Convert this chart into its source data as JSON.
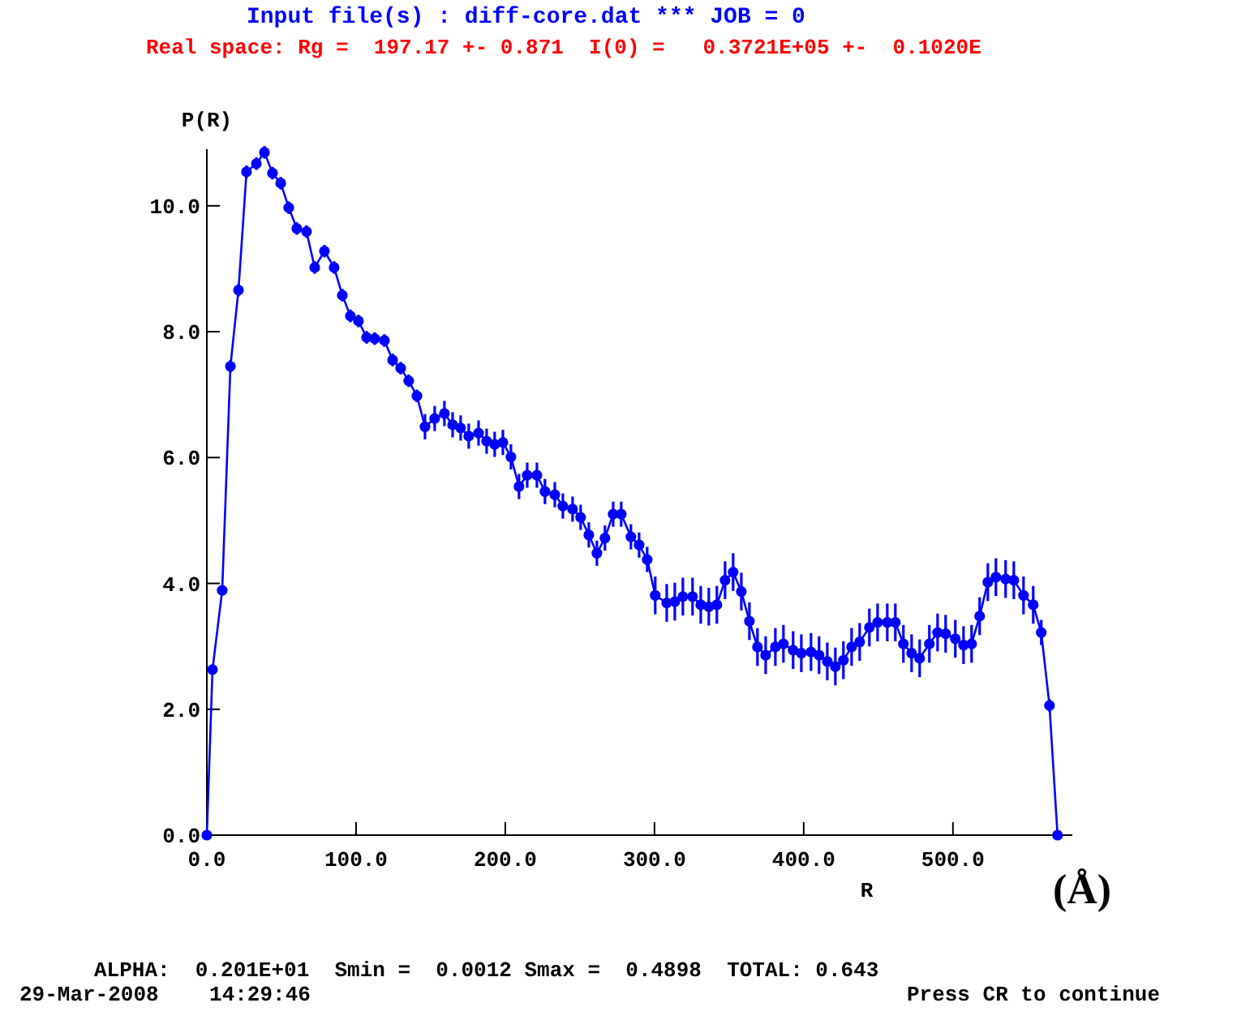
{
  "chart_data": {
    "type": "line",
    "title": "Input file(s) : diff-core.dat *** JOB = 0",
    "subtitle": "Real space: Rg =  197.17 +- 0.871  I(0) =   0.3721E+05 +-  0.1020E",
    "xlabel": "R",
    "ylabel": "P(R)",
    "annotations": [
      "(Å)",
      "ALPHA:  0.201E+01  Smin =  0.0012 Smax =  0.4898  TOTAL: 0.643",
      "29-Mar-2008    14:29:46",
      "Press CR to continue"
    ],
    "xlim": [
      0,
      580
    ],
    "ylim": [
      0,
      10.9
    ],
    "xticks": [
      {
        "value": 0,
        "label": "0.0"
      },
      {
        "value": 100,
        "label": "100.0"
      },
      {
        "value": 200,
        "label": "200.0"
      },
      {
        "value": 300,
        "label": "300.0"
      },
      {
        "value": 400,
        "label": "400.0"
      },
      {
        "value": 500,
        "label": "500.0"
      }
    ],
    "yticks": [
      {
        "value": 0,
        "label": "0.0"
      },
      {
        "value": 2,
        "label": "2.0"
      },
      {
        "value": 4,
        "label": "4.0"
      },
      {
        "value": 6,
        "label": "6.0"
      },
      {
        "value": 8,
        "label": "8.0"
      },
      {
        "value": 10,
        "label": "10.0"
      }
    ],
    "grid": false,
    "marker": "circle",
    "line_style": "solid",
    "x": [
      0,
      3.8,
      10.3,
      15.8,
      21.2,
      26.6,
      33.2,
      38.6,
      44,
      49.5,
      54.9,
      60.3,
      66.8,
      72.3,
      78.8,
      85.3,
      90.8,
      96.2,
      101.6,
      107.1,
      112.5,
      119,
      124.5,
      129.9,
      135.3,
      140.8,
      146.2,
      152.7,
      159.2,
      164.7,
      170.1,
      175.5,
      182.1,
      187.5,
      192.9,
      198.4,
      203.8,
      209.2,
      214.7,
      221.2,
      226.6,
      233.2,
      238.6,
      245.1,
      250.5,
      256,
      261.4,
      266.8,
      272.3,
      277.7,
      284.2,
      289.7,
      295.1,
      300.5,
      308.2,
      313.6,
      319,
      325.5,
      331,
      336.4,
      341.8,
      347.3,
      352.7,
      358.2,
      363.6,
      369,
      374.5,
      381,
      386.4,
      392.9,
      398.4,
      404.9,
      410.3,
      415.8,
      421.2,
      426.6,
      432.1,
      437.5,
      444,
      449.5,
      456,
      461.4,
      466.8,
      472.3,
      477.7,
      484.2,
      489.7,
      495.1,
      501.6,
      507.1,
      512.5,
      517.9,
      523.4,
      528.8,
      535.3,
      540.8,
      547.3,
      553.8,
      559.2,
      564.7,
      570.1
    ],
    "series": [
      {
        "color": "#0000ff",
        "values": [
          0,
          2.63,
          3.89,
          7.45,
          8.66,
          10.54,
          10.67,
          10.85,
          10.52,
          10.36,
          9.97,
          9.64,
          9.59,
          9.02,
          9.28,
          9.02,
          8.58,
          8.25,
          8.17,
          7.91,
          7.89,
          7.86,
          7.55,
          7.42,
          7.22,
          6.98,
          6.49,
          6.62,
          6.7,
          6.52,
          6.47,
          6.34,
          6.39,
          6.26,
          6.21,
          6.24,
          6.01,
          5.54,
          5.72,
          5.72,
          5.46,
          5.41,
          5.23,
          5.18,
          5.05,
          4.77,
          4.48,
          4.72,
          5.1,
          5.1,
          4.74,
          4.61,
          4.38,
          3.81,
          3.69,
          3.71,
          3.79,
          3.79,
          3.66,
          3.63,
          3.66,
          4.05,
          4.18,
          3.87,
          3.4,
          2.99,
          2.86,
          2.99,
          3.04,
          2.94,
          2.89,
          2.91,
          2.86,
          2.76,
          2.68,
          2.78,
          2.99,
          3.07,
          3.3,
          3.38,
          3.38,
          3.38,
          3.04,
          2.89,
          2.81,
          3.04,
          3.22,
          3.2,
          3.12,
          3.02,
          3.04,
          3.48,
          4.02,
          4.1,
          4.07,
          4.05,
          3.81,
          3.66,
          3.22,
          2.06,
          0
        ],
        "errors": [
          null,
          0.05,
          0.05,
          0.1,
          0.1,
          0.1,
          0.1,
          0.1,
          0.1,
          0.1,
          0.1,
          0.1,
          0.1,
          0.1,
          0.1,
          0.1,
          0.1,
          0.1,
          0.1,
          0.1,
          0.1,
          0.1,
          0.1,
          0.1,
          0.1,
          0.1,
          0.2,
          0.2,
          0.2,
          0.2,
          0.2,
          0.2,
          0.2,
          0.2,
          0.2,
          0.2,
          0.2,
          0.2,
          0.2,
          0.2,
          0.2,
          0.2,
          0.2,
          0.2,
          0.2,
          0.2,
          0.2,
          0.2,
          0.2,
          0.2,
          0.2,
          0.2,
          0.2,
          0.3,
          0.3,
          0.3,
          0.3,
          0.3,
          0.3,
          0.3,
          0.3,
          0.3,
          0.3,
          0.3,
          0.3,
          0.3,
          0.3,
          0.3,
          0.3,
          0.3,
          0.3,
          0.3,
          0.3,
          0.3,
          0.3,
          0.3,
          0.3,
          0.3,
          0.3,
          0.3,
          0.3,
          0.3,
          0.3,
          0.3,
          0.3,
          0.3,
          0.3,
          0.3,
          0.3,
          0.3,
          0.3,
          0.3,
          0.3,
          0.3,
          0.3,
          0.3,
          0.3,
          0.3,
          0.2,
          0.1,
          null
        ]
      }
    ]
  }
}
